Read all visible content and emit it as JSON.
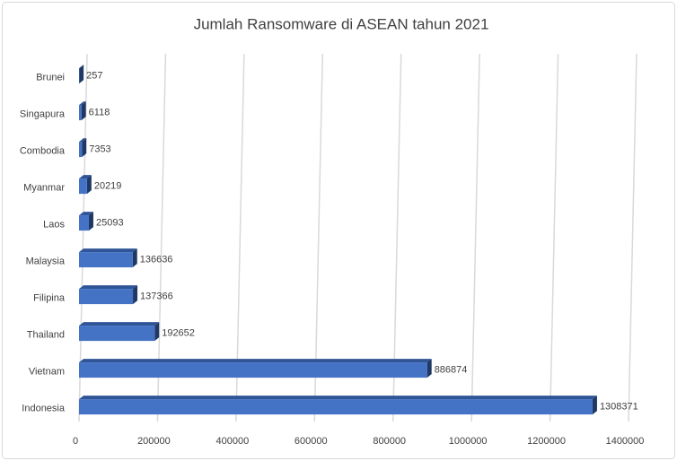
{
  "chart_data": {
    "type": "bar3d_horizontal",
    "title": "Jumlah Ransomware di ASEAN tahun 2021",
    "categories": [
      "Brunei",
      "Singapura",
      "Combodia",
      "Myanmar",
      "Laos",
      "Malaysia",
      "Filipina",
      "Thailand",
      "Vietnam",
      "Indonesia"
    ],
    "values": [
      257,
      6118,
      7353,
      20219,
      25093,
      136636,
      137366,
      192652,
      886874,
      1308371
    ],
    "color": "#4472c4",
    "xlim": [
      0,
      1400000
    ],
    "xticks": [
      0,
      200000,
      400000,
      600000,
      800000,
      1000000,
      1200000,
      1400000
    ],
    "grid": true
  }
}
